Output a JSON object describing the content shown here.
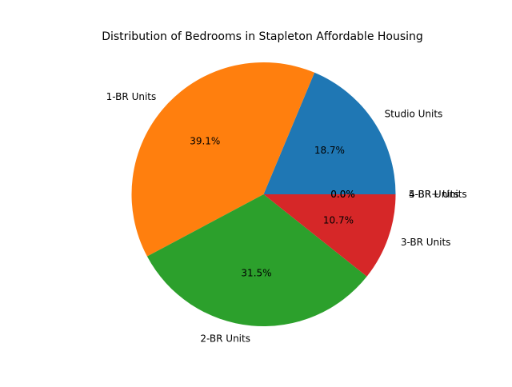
{
  "chart_data": {
    "type": "pie",
    "title": "Distribution of Bedrooms in Stapleton Affordable Housing",
    "categories": [
      "Studio Units",
      "1-BR Units",
      "2-BR Units",
      "3-BR Units",
      "4-BR Units",
      "5-BR+ Units"
    ],
    "values": [
      18.7,
      39.1,
      31.5,
      10.7,
      0.0,
      0.0
    ],
    "percent_labels": [
      "18.7%",
      "39.1%",
      "31.5%",
      "10.7%",
      "0.0%",
      "0.0%"
    ],
    "colors": [
      "#1f77b4",
      "#ff7f0e",
      "#2ca02c",
      "#d62728",
      "#9467bd",
      "#8c564b"
    ],
    "start_angle_deg": 0,
    "direction": "counterclockwise",
    "legend": "none"
  }
}
